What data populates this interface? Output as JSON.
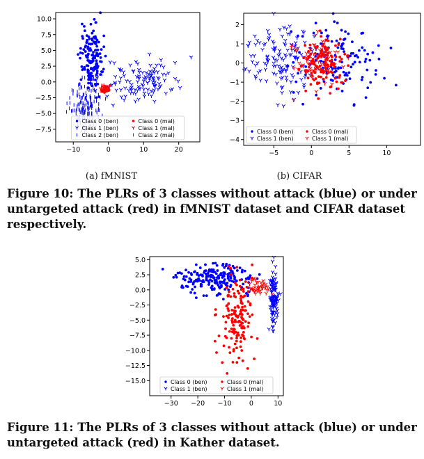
{
  "captions": {
    "sub_a": "(a) fMNIST",
    "sub_b": "(b) CIFAR",
    "fig10": "Figure 10: The PLRs of 3 classes without attack (blue) or under untargeted attack (red) in fMNIST dataset and CIFAR dataset respectively.",
    "fig11": "Figure 11: The PLRs of 3 classes without attack (blue) or under untargeted attack (red) in Kather dataset."
  },
  "colors": {
    "benign": "#0000ff",
    "malicious": "#ff0000"
  },
  "chart_data": [
    {
      "type": "scatter",
      "xlim": [
        -15,
        26
      ],
      "ylim": [
        -9.5,
        11
      ],
      "xticks": [
        -10,
        0,
        10,
        20
      ],
      "yticks": [
        -7.5,
        -5.0,
        -2.5,
        0.0,
        2.5,
        5.0,
        7.5,
        10.0
      ],
      "tick_labels_y": [
        "−7.5",
        "−5.0",
        "−2.5",
        "0.0",
        "2.5",
        "5.0",
        "7.5",
        "10.0"
      ],
      "tick_labels_x": [
        "−10",
        "0",
        "10",
        "20"
      ],
      "legend": {
        "placement": "lower-center",
        "columns": 2,
        "entries": [
          {
            "label": "Class 0 (ben)",
            "marker": "circle",
            "color": "#0000ff"
          },
          {
            "label": "Class 0 (mal)",
            "marker": "circle",
            "color": "#ff0000"
          },
          {
            "label": "Class 1 (ben)",
            "marker": "tri",
            "color": "#0000ff"
          },
          {
            "label": "Class 1 (mal)",
            "marker": "tri",
            "color": "#ff0000"
          },
          {
            "label": "Class 2 (ben)",
            "marker": "vline",
            "color": "#0000ff"
          },
          {
            "label": "Class 2 (mal)",
            "marker": "vline",
            "color": "#ff0000"
          }
        ]
      },
      "clusters": [
        {
          "series": "Class 0 (ben)",
          "marker": "circle",
          "color": "#0000ff",
          "cx": -5,
          "cy": 4,
          "sx": 1.6,
          "sy": 2.6,
          "n": 150
        },
        {
          "series": "Class 1 (ben)",
          "marker": "tri",
          "color": "#0000ff",
          "cx": 10,
          "cy": 0,
          "sx": 5,
          "sy": 1.6,
          "n": 120
        },
        {
          "series": "Class 2 (ben)",
          "marker": "vline",
          "color": "#0000ff",
          "cx": -6.5,
          "cy": -3.5,
          "sx": 2.3,
          "sy": 2.0,
          "n": 160
        },
        {
          "series": "Class 0 (mal)",
          "marker": "circle",
          "color": "#ff0000",
          "cx": -1,
          "cy": -1.0,
          "sx": 0.7,
          "sy": 0.25,
          "n": 20
        },
        {
          "series": "Class 1 (mal)",
          "marker": "tri",
          "color": "#ff0000",
          "cx": -1,
          "cy": -1.1,
          "sx": 0.6,
          "sy": 0.25,
          "n": 12
        },
        {
          "series": "Class 2 (mal)",
          "marker": "vline",
          "color": "#ff0000",
          "cx": -1.5,
          "cy": -1.0,
          "sx": 0.5,
          "sy": 0.25,
          "n": 12
        }
      ]
    },
    {
      "type": "scatter",
      "xlim": [
        -9,
        14.5
      ],
      "ylim": [
        -4.3,
        2.6
      ],
      "xticks": [
        -5,
        0,
        5,
        10
      ],
      "yticks": [
        -4,
        -3,
        -2,
        -1,
        0,
        1,
        2
      ],
      "tick_labels_y": [
        "−4",
        "−3",
        "−2",
        "−1",
        "0",
        "1",
        "2"
      ],
      "tick_labels_x": [
        "−5",
        "0",
        "5",
        "10"
      ],
      "legend": {
        "placement": "lower-left",
        "columns": 2,
        "entries": [
          {
            "label": "Class 0 (ben)",
            "marker": "circle",
            "color": "#0000ff"
          },
          {
            "label": "Class 0 (mal)",
            "marker": "circle",
            "color": "#ff0000"
          },
          {
            "label": "Class 1 (ben)",
            "marker": "tri",
            "color": "#0000ff"
          },
          {
            "label": "Class 1 (mal)",
            "marker": "tri",
            "color": "#ff0000"
          }
        ]
      },
      "clusters": [
        {
          "series": "Class 1 (ben)",
          "marker": "tri",
          "color": "#0000ff",
          "cx": -3.5,
          "cy": 0.2,
          "sx": 2.8,
          "sy": 0.9,
          "n": 150
        },
        {
          "series": "Class 0 (ben)",
          "marker": "circle",
          "color": "#0000ff",
          "cx": 3.5,
          "cy": 0.2,
          "sx": 2.8,
          "sy": 1.0,
          "n": 130
        },
        {
          "series": "Class 0 (mal)",
          "marker": "circle",
          "color": "#ff0000",
          "cx": 1.5,
          "cy": 0.0,
          "sx": 1.4,
          "sy": 0.7,
          "n": 120
        },
        {
          "series": "Class 1 (mal)",
          "marker": "tri",
          "color": "#ff0000",
          "cx": 0.8,
          "cy": 0.2,
          "sx": 1.3,
          "sy": 0.6,
          "n": 80
        }
      ]
    },
    {
      "type": "scatter",
      "xlim": [
        -38,
        12
      ],
      "ylim": [
        -17.5,
        5.5
      ],
      "xticks": [
        -30,
        -20,
        -10,
        0,
        10
      ],
      "yticks": [
        -15,
        -12.5,
        -10,
        -7.5,
        -5,
        -2.5,
        0,
        2.5,
        5
      ],
      "tick_labels_y": [
        "−15.0",
        "−12.5",
        "−10.0",
        "−7.5",
        "−5.0",
        "−2.5",
        "0.0",
        "2.5",
        "5.0"
      ],
      "tick_labels_x": [
        "−30",
        "−20",
        "−10",
        "0",
        "10"
      ],
      "legend": {
        "placement": "lower-center",
        "columns": 2,
        "entries": [
          {
            "label": "Class 0 (ben)",
            "marker": "circle",
            "color": "#0000ff"
          },
          {
            "label": "Class 0 (mal)",
            "marker": "circle",
            "color": "#ff0000"
          },
          {
            "label": "Class 1 (ben)",
            "marker": "tri",
            "color": "#0000ff"
          },
          {
            "label": "Class 1 (mal)",
            "marker": "tri",
            "color": "#ff0000"
          }
        ]
      },
      "clusters": [
        {
          "series": "Class 0 (ben)",
          "marker": "circle",
          "color": "#0000ff",
          "cx": -14,
          "cy": 1.8,
          "sx": 7,
          "sy": 1.3,
          "n": 200
        },
        {
          "series": "Class 1 (ben)",
          "marker": "tri",
          "color": "#0000ff",
          "cx": 8.5,
          "cy": -1.5,
          "sx": 0.9,
          "sy": 2.5,
          "n": 120
        },
        {
          "series": "Class 0 (mal)",
          "marker": "circle",
          "color": "#ff0000",
          "cx": -5,
          "cy": -4.5,
          "sx": 3,
          "sy": 3.8,
          "n": 160
        },
        {
          "series": "Class 1 (mal)",
          "marker": "tri",
          "color": "#ff0000",
          "cx": 3,
          "cy": 0.5,
          "sx": 2.2,
          "sy": 0.6,
          "n": 45
        }
      ]
    }
  ]
}
